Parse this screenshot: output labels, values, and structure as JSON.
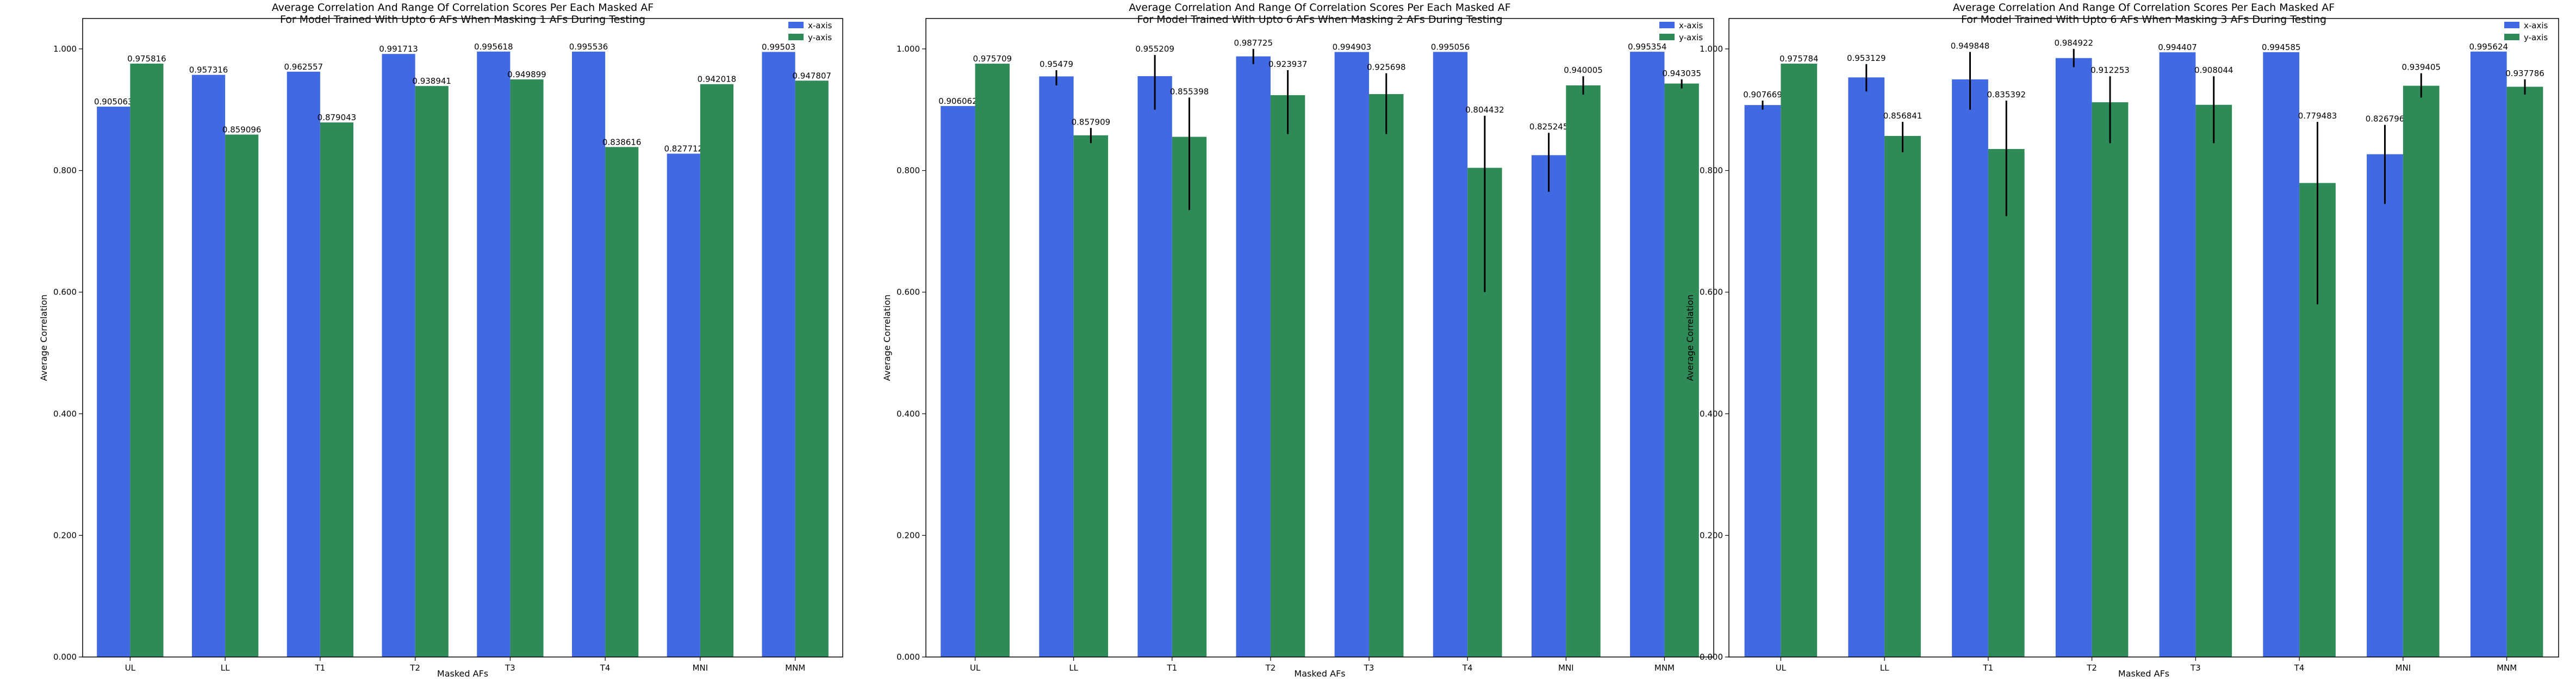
{
  "colors": {
    "x_axis": "#4169e1",
    "y_axis": "#2e8b57",
    "error_bar": "#000000"
  },
  "chart_data": [
    {
      "type": "bar",
      "title": "Average Correlation And Range Of Correlation Scores Per Each Masked AF",
      "subtitle": "For Model Trained With Upto 6 AFs When Masking 1 AFs During Testing",
      "xlabel": "Masked AFs",
      "ylabel": "Average Correlation",
      "ylim": [
        0,
        1.05
      ],
      "yticks": [
        "0.000",
        "0.200",
        "0.400",
        "0.600",
        "0.800",
        "1.000"
      ],
      "categories": [
        "UL",
        "LL",
        "T1",
        "T2",
        "T3",
        "T4",
        "MNI",
        "MNM"
      ],
      "legend_position": "top-right",
      "series": [
        {
          "name": "x-axis",
          "values": [
            0.905063,
            0.957316,
            0.962557,
            0.991713,
            0.995618,
            0.995536,
            0.827712,
            0.99503
          ],
          "labels": [
            "0.905063",
            "0.957316",
            "0.962557",
            "0.991713",
            "0.995618",
            "0.995536",
            "0.827712",
            "0.99503"
          ],
          "err_low": [
            null,
            null,
            null,
            null,
            null,
            null,
            null,
            null
          ],
          "err_high": [
            null,
            null,
            null,
            null,
            null,
            null,
            null,
            null
          ]
        },
        {
          "name": "y-axis",
          "values": [
            0.975816,
            0.859096,
            0.879043,
            0.938941,
            0.949899,
            0.838616,
            0.942018,
            0.947807
          ],
          "labels": [
            "0.975816",
            "0.859096",
            "0.879043",
            "0.938941",
            "0.949899",
            "0.838616",
            "0.942018",
            "0.947807"
          ],
          "err_low": [
            null,
            null,
            null,
            null,
            null,
            null,
            null,
            null
          ],
          "err_high": [
            null,
            null,
            null,
            null,
            null,
            null,
            null,
            null
          ]
        }
      ]
    },
    {
      "type": "bar",
      "title": "Average Correlation And Range Of Correlation Scores Per Each Masked AF",
      "subtitle": "For Model Trained With Upto 6 AFs When Masking 2 AFs During Testing",
      "xlabel": "Masked AFs",
      "ylabel": "Average Correlation",
      "ylim": [
        0,
        1.05
      ],
      "yticks": [
        "0.000",
        "0.200",
        "0.400",
        "0.600",
        "0.800",
        "1.000"
      ],
      "categories": [
        "UL",
        "LL",
        "T1",
        "T2",
        "T3",
        "T4",
        "MNI",
        "MNM"
      ],
      "legend_position": "top-right",
      "series": [
        {
          "name": "x-axis",
          "values": [
            0.906062,
            0.95479,
            0.955209,
            0.987725,
            0.994903,
            0.995056,
            0.825245,
            0.995354
          ],
          "labels": [
            "0.906062",
            "0.95479",
            "0.955209",
            "0.987725",
            "0.994903",
            "0.995056",
            "0.825245",
            "0.995354"
          ],
          "err_low": [
            null,
            0.94,
            0.9,
            0.975,
            null,
            null,
            0.765,
            null
          ],
          "err_high": [
            null,
            0.965,
            0.99,
            1.0,
            null,
            null,
            0.862,
            null
          ]
        },
        {
          "name": "y-axis",
          "values": [
            0.975709,
            0.857909,
            0.855398,
            0.923937,
            0.925698,
            0.804432,
            0.940005,
            0.943035
          ],
          "labels": [
            "0.975709",
            "0.857909",
            "0.855398",
            "0.923937",
            "0.925698",
            "0.804432",
            "0.940005",
            "0.943035"
          ],
          "err_low": [
            null,
            0.845,
            0.735,
            0.86,
            0.86,
            0.6,
            0.925,
            0.935
          ],
          "err_high": [
            null,
            0.87,
            0.92,
            0.965,
            0.96,
            0.89,
            0.955,
            0.95
          ]
        }
      ]
    },
    {
      "type": "bar",
      "title": "Average Correlation And Range Of Correlation Scores Per Each Masked AF",
      "subtitle": "For Model Trained With Upto 6 AFs When Masking 3 AFs During Testing",
      "xlabel": "Masked AFs",
      "ylabel": "Average Correlation",
      "ylim": [
        0,
        1.05
      ],
      "yticks": [
        "0.000",
        "0.200",
        "0.400",
        "0.600",
        "0.800",
        "1.000"
      ],
      "categories": [
        "UL",
        "LL",
        "T1",
        "T2",
        "T3",
        "T4",
        "MNI",
        "MNM"
      ],
      "legend_position": "top-right",
      "series": [
        {
          "name": "x-axis",
          "values": [
            0.907669,
            0.953129,
            0.949848,
            0.984922,
            0.994407,
            0.994585,
            0.826796,
            0.995624
          ],
          "labels": [
            "0.907669",
            "0.953129",
            "0.949848",
            "0.984922",
            "0.994407",
            "0.994585",
            "0.826796",
            "0.995624"
          ],
          "err_low": [
            0.9,
            0.93,
            0.9,
            0.97,
            null,
            null,
            0.745,
            null
          ],
          "err_high": [
            0.915,
            0.975,
            0.995,
            1.0,
            null,
            null,
            0.875,
            null
          ]
        },
        {
          "name": "y-axis",
          "values": [
            0.975784,
            0.856841,
            0.835392,
            0.912253,
            0.908044,
            0.779483,
            0.939405,
            0.937786
          ],
          "labels": [
            "0.975784",
            "0.856841",
            "0.835392",
            "0.912253",
            "0.908044",
            "0.779483",
            "0.939405",
            "0.937786"
          ],
          "err_low": [
            null,
            0.83,
            0.725,
            0.845,
            0.845,
            0.58,
            0.92,
            0.925
          ],
          "err_high": [
            null,
            0.88,
            0.915,
            0.955,
            0.955,
            0.88,
            0.96,
            0.95
          ]
        }
      ]
    }
  ]
}
